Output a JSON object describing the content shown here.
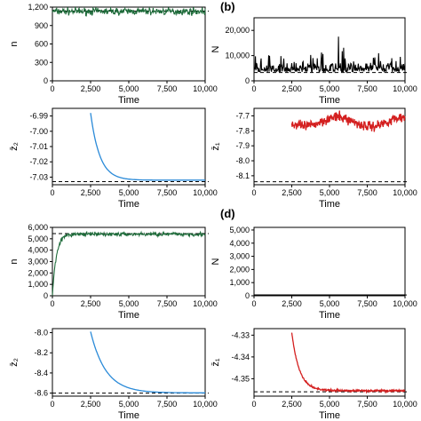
{
  "colors": {
    "green": "#1e6b3a",
    "black": "#000000",
    "blue": "#2a8ad8",
    "red": "#d42020"
  },
  "panel_labels": {
    "b": "(b)",
    "d": "(d)"
  },
  "chart_data": [
    {
      "id": "a-top",
      "type": "line",
      "xlabel": "Time",
      "ylabel": "n",
      "xticks": [
        "0",
        "2,500",
        "5,000",
        "7,500",
        "10,000"
      ],
      "yticks": [
        "0",
        "300",
        "600",
        "900",
        "1,200"
      ],
      "xlim": [
        0,
        10000
      ],
      "ylim": [
        0,
        1200
      ],
      "series": [
        {
          "color": "green",
          "style": "noisy",
          "start": 0,
          "mean": 1130,
          "noise": 40
        }
      ],
      "reference_line": 1135
    },
    {
      "id": "b-top",
      "type": "line",
      "xlabel": "Time",
      "ylabel": "N",
      "xticks": [
        "0",
        "2,500",
        "5,000",
        "7,500",
        "10,000"
      ],
      "yticks": [
        "0",
        "10,000",
        "20,000"
      ],
      "xlim": [
        0,
        10000
      ],
      "ylim": [
        0,
        25000
      ],
      "series": [
        {
          "color": "black",
          "style": "spiky",
          "start": 0,
          "mean": 3500,
          "noise": 3000,
          "peak_x": 5600,
          "peak_y": 17500
        }
      ],
      "reference_line": 3300
    },
    {
      "id": "a-bottom",
      "type": "line",
      "xlabel": "Time",
      "ylabel": "z̄₂",
      "xticks": [
        "0",
        "2,500",
        "5,000",
        "7,500",
        "10,000"
      ],
      "yticks": [
        "-6.99",
        "-7.00",
        "-7.01",
        "-7.02",
        "-7.03"
      ],
      "xlim": [
        0,
        10000
      ],
      "ylim": [
        -7.035,
        -6.985
      ],
      "series": [
        {
          "color": "blue",
          "style": "decay",
          "start": 2500,
          "y0": -6.988,
          "asym": -7.032,
          "tau": 600
        }
      ],
      "reference_line": -7.033
    },
    {
      "id": "b-bottom",
      "type": "line",
      "xlabel": "Time",
      "ylabel": "z̄₁",
      "xticks": [
        "0",
        "2,500",
        "5,000",
        "7,500",
        "10,000"
      ],
      "yticks": [
        "-7.7",
        "-7.8",
        "-7.9",
        "-8.0",
        "-8.1"
      ],
      "xlim": [
        0,
        10000
      ],
      "ylim": [
        -8.16,
        -7.65
      ],
      "series": [
        {
          "color": "red",
          "style": "wobble",
          "start": 2500,
          "mean": -7.74,
          "noise": 0.03
        }
      ],
      "reference_line": -8.14
    },
    {
      "id": "c-top",
      "type": "line",
      "xlabel": "Time",
      "ylabel": "n",
      "xticks": [
        "0",
        "2,500",
        "5,000",
        "7,500",
        "10,000"
      ],
      "yticks": [
        "0",
        "1,000",
        "2,000",
        "3,000",
        "4,000",
        "5,000",
        "6,000"
      ],
      "xlim": [
        0,
        10000
      ],
      "ylim": [
        0,
        6000
      ],
      "series": [
        {
          "color": "green",
          "style": "rise",
          "start": 0,
          "mean": 5400,
          "noise": 120,
          "tau": 250
        }
      ],
      "reference_line": 5450
    },
    {
      "id": "d-top",
      "type": "line",
      "xlabel": "Time",
      "ylabel": "N",
      "xticks": [
        "0",
        "2,500",
        "5,000",
        "7,500",
        "10,000"
      ],
      "yticks": [
        "0",
        "1,000",
        "2,000",
        "3,000",
        "4,000",
        "5,000"
      ],
      "xlim": [
        0,
        10000
      ],
      "ylim": [
        0,
        5200
      ],
      "series": [
        {
          "color": "black",
          "style": "flat",
          "start": 0,
          "mean": 60
        }
      ],
      "reference_line": 60
    },
    {
      "id": "c-bottom",
      "type": "line",
      "xlabel": "Time",
      "ylabel": "z̄₂",
      "xticks": [
        "0",
        "2,500",
        "5,000",
        "7,500",
        "10,000"
      ],
      "yticks": [
        "-8.0",
        "-8.2",
        "-8.4",
        "-8.6"
      ],
      "xlim": [
        0,
        10000
      ],
      "ylim": [
        -8.63,
        -7.96
      ],
      "series": [
        {
          "color": "blue",
          "style": "decay",
          "start": 2500,
          "y0": -7.99,
          "asym": -8.598,
          "tau": 1000
        }
      ],
      "reference_line": -8.6
    },
    {
      "id": "d-bottom",
      "type": "line",
      "xlabel": "Time",
      "ylabel": "z̄₁",
      "xticks": [
        "0",
        "2,500",
        "5,000",
        "7,500",
        "10,000"
      ],
      "yticks": [
        "-4.33",
        "-4.34",
        "-4.35"
      ],
      "xlim": [
        0,
        10000
      ],
      "ylim": [
        -4.358,
        -4.327
      ],
      "series": [
        {
          "color": "red",
          "style": "decay",
          "start": 2500,
          "y0": -4.329,
          "asym": -4.3555,
          "tau": 500,
          "noise": 0.0003
        }
      ],
      "reference_line": -4.356
    }
  ]
}
